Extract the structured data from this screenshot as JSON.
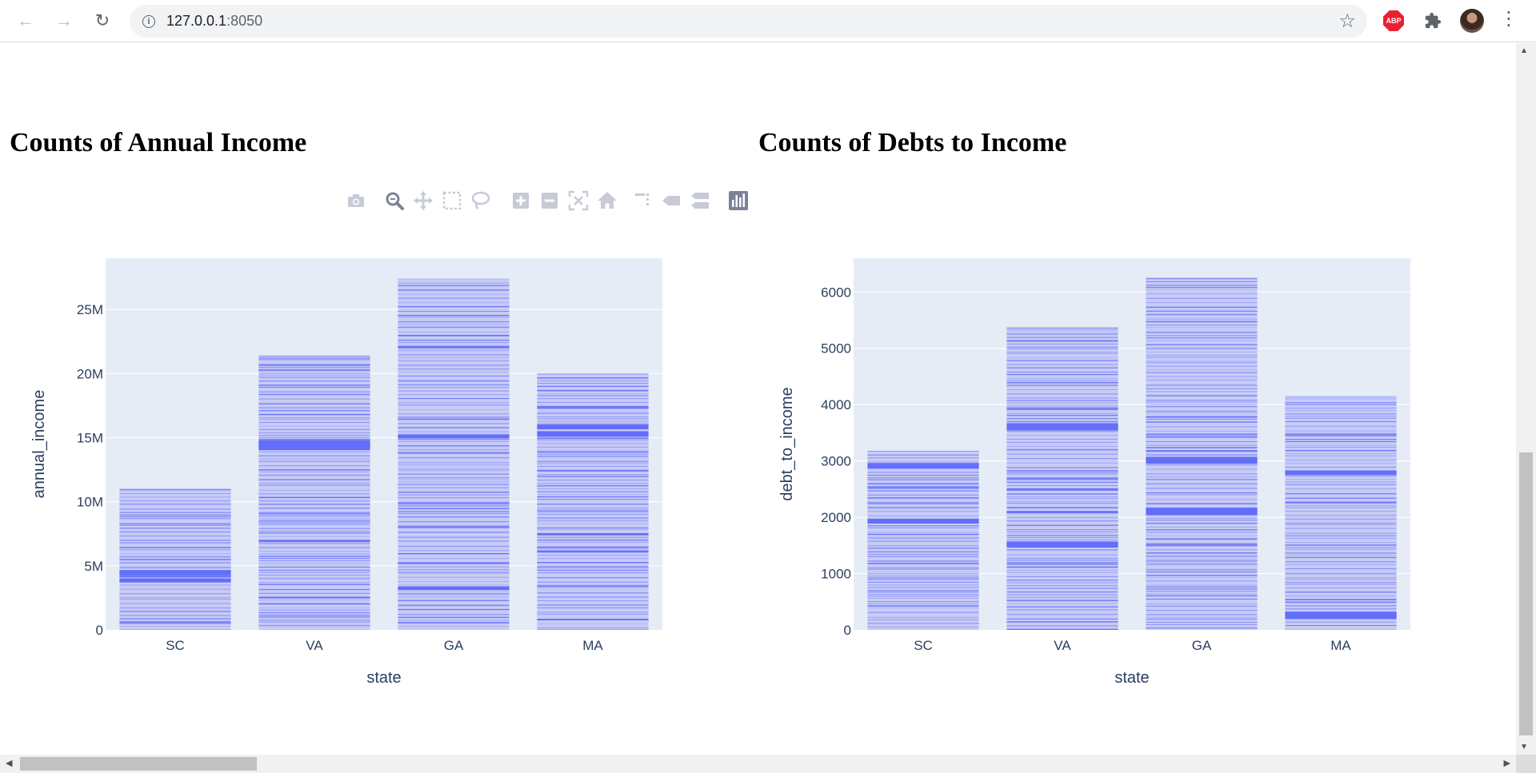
{
  "browser": {
    "url_host": "127.0.0.1",
    "url_port": ":8050",
    "extension_abp_label": "ABP"
  },
  "charts": {
    "left_title": "Counts of Annual Income",
    "right_title": "Counts of Debts to Income"
  },
  "chart_data": [
    {
      "type": "bar",
      "title": "Counts of Annual Income",
      "xlabel": "state",
      "ylabel": "annual_income",
      "categories": [
        "SC",
        "VA",
        "GA",
        "MA"
      ],
      "values": [
        11000000,
        21400000,
        27400000,
        20000000
      ],
      "ylim": [
        0,
        29000000
      ],
      "yticks": [
        0,
        5000000,
        10000000,
        15000000,
        20000000,
        25000000
      ],
      "ytick_labels": [
        "0",
        "5M",
        "10M",
        "15M",
        "20M",
        "25M"
      ],
      "bar_color": "#636efa",
      "plot_bg": "#e5ecf6",
      "grid": true,
      "stacked_segments": true
    },
    {
      "type": "bar",
      "title": "Counts of Debts to Income",
      "xlabel": "state",
      "ylabel": "debt_to_income",
      "categories": [
        "SC",
        "VA",
        "GA",
        "MA"
      ],
      "values": [
        3180,
        5370,
        6250,
        4150
      ],
      "ylim": [
        0,
        6600
      ],
      "yticks": [
        0,
        1000,
        2000,
        3000,
        4000,
        5000,
        6000
      ],
      "ytick_labels": [
        "0",
        "1000",
        "2000",
        "3000",
        "4000",
        "5000",
        "6000"
      ],
      "bar_color": "#636efa",
      "plot_bg": "#e5ecf6",
      "grid": true,
      "stacked_segments": true
    }
  ],
  "modebar": {
    "buttons": [
      "camera-icon",
      "zoom-icon",
      "pan-icon",
      "box-select-icon",
      "lasso-select-icon",
      "zoom-in-icon",
      "zoom-out-icon",
      "autoscale-icon",
      "reset-axes-icon",
      "spike-lines-icon",
      "hover-closest-icon",
      "hover-compare-icon",
      "plotly-logo-icon"
    ]
  }
}
